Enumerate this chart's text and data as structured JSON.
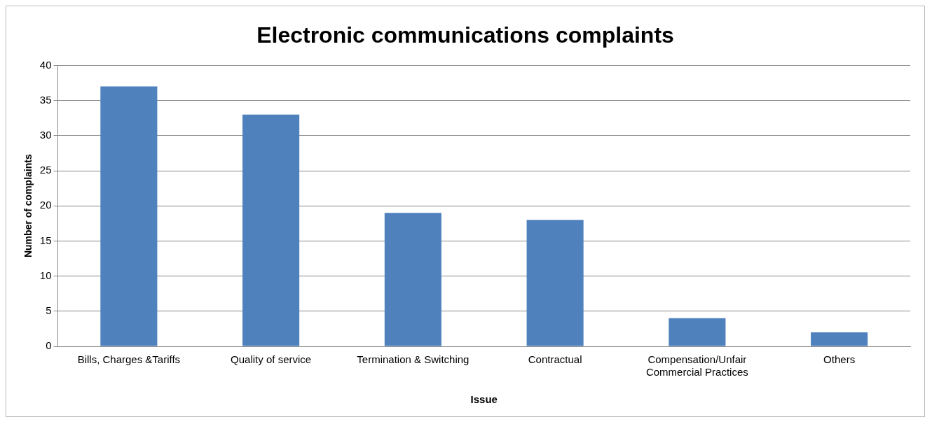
{
  "chart_data": {
    "type": "bar",
    "title": "Electronic communications complaints",
    "xlabel": "Issue",
    "ylabel": "Number of complaints",
    "categories": [
      "Bills, Charges &Tariffs",
      "Quality of service",
      "Termination & Switching",
      "Contractual",
      "Compensation/Unfair Commercial Practices",
      "Others"
    ],
    "values": [
      37,
      33,
      19,
      18,
      4,
      2
    ],
    "color": "#4f81bd",
    "ylim": [
      0,
      40
    ],
    "yticks": [
      0,
      5,
      10,
      15,
      20,
      25,
      30,
      35,
      40
    ],
    "grid": "y",
    "legend": false
  }
}
